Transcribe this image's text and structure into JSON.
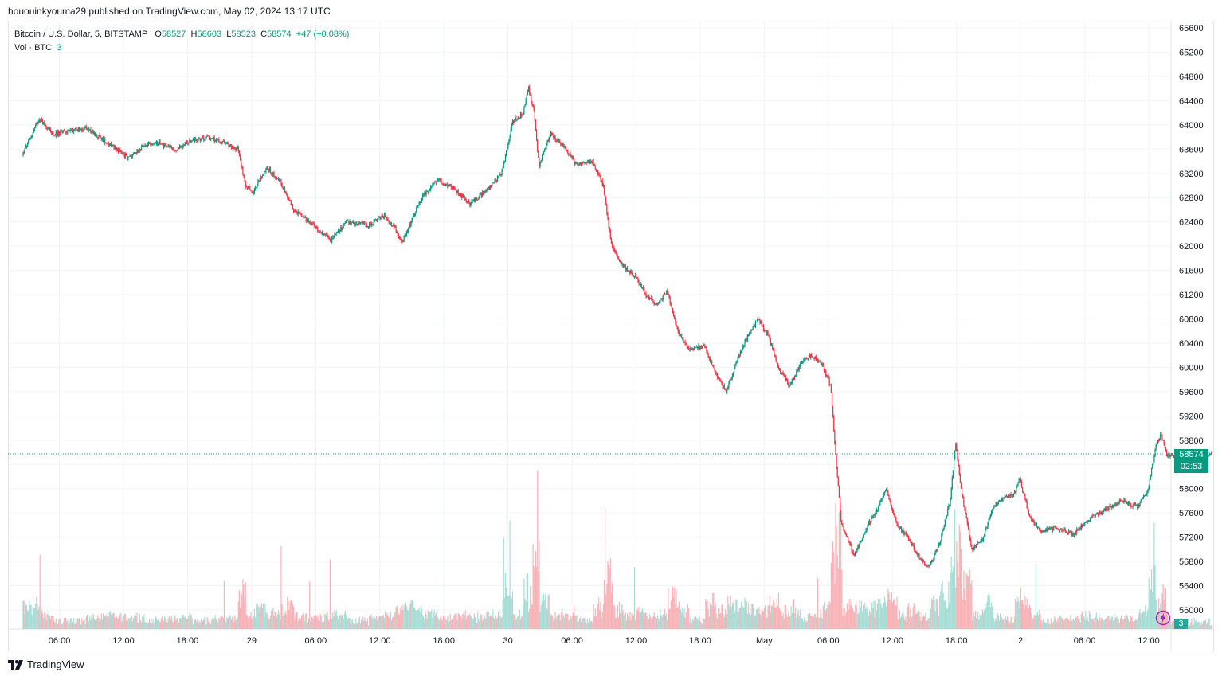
{
  "header": {
    "published_line": "hououinkyouma29 published on TradingView.com, May 02, 2024 13:17 UTC"
  },
  "legend": {
    "symbol": "Bitcoin / U.S. Dollar, 5, BITSTAMP",
    "o_label": "O",
    "o_value": "58527",
    "h_label": "H",
    "h_value": "58603",
    "l_label": "L",
    "l_value": "58523",
    "c_label": "C",
    "c_value": "58574",
    "change": "+47 (+0.08%)",
    "vol_label": "Vol · BTC",
    "vol_value": "3"
  },
  "price_tag": {
    "price": "58574",
    "countdown": "02:53"
  },
  "vol_badge": "3",
  "brand": {
    "name": "TradingView"
  },
  "colors": {
    "up": "#089981",
    "down": "#f23645",
    "up_vol": "#a8ddd6",
    "down_vol": "#f7b3b7",
    "grid": "#f0f3fa"
  },
  "chart_data": {
    "type": "candlestick",
    "title": "Bitcoin / U.S. Dollar, 5, BITSTAMP",
    "ylim": [
      55700,
      65700
    ],
    "y_ticks": [
      56000,
      56400,
      56800,
      57200,
      57600,
      58000,
      58400,
      58800,
      59200,
      59600,
      60000,
      60400,
      60800,
      61200,
      61600,
      62000,
      62400,
      62800,
      63200,
      63600,
      64000,
      64400,
      64800,
      65200,
      65600
    ],
    "x_tick_labels": [
      "06:00",
      "12:00",
      "18:00",
      "29",
      "06:00",
      "12:00",
      "18:00",
      "30",
      "06:00",
      "12:00",
      "18:00",
      "May",
      "06:00",
      "12:00",
      "18:00",
      "2",
      "06:00",
      "12:00"
    ],
    "x_tick_hours": [
      6,
      12,
      18,
      24,
      30,
      36,
      42,
      48,
      54,
      60,
      66,
      72,
      78,
      84,
      90,
      96,
      102,
      108
    ],
    "x_start_hour": 2.6,
    "x_end_hour": 113.9,
    "last_price": 58574,
    "price_path": [
      [
        2.6,
        63500
      ],
      [
        4.2,
        64100
      ],
      [
        5.5,
        63850
      ],
      [
        7,
        63900
      ],
      [
        8.5,
        63950
      ],
      [
        10,
        63780
      ],
      [
        11.5,
        63600
      ],
      [
        12.5,
        63450
      ],
      [
        14,
        63650
      ],
      [
        15.5,
        63700
      ],
      [
        17,
        63580
      ],
      [
        18.5,
        63750
      ],
      [
        20,
        63800
      ],
      [
        21.5,
        63700
      ],
      [
        22.8,
        63600
      ],
      [
        23.5,
        63000
      ],
      [
        24.2,
        62900
      ],
      [
        25.5,
        63300
      ],
      [
        26.8,
        63050
      ],
      [
        28,
        62600
      ],
      [
        29.5,
        62400
      ],
      [
        30.5,
        62250
      ],
      [
        31.5,
        62100
      ],
      [
        33,
        62400
      ],
      [
        35,
        62350
      ],
      [
        36.5,
        62500
      ],
      [
        37.5,
        62300
      ],
      [
        38.2,
        62050
      ],
      [
        39,
        62400
      ],
      [
        40,
        62800
      ],
      [
        41.5,
        63100
      ],
      [
        43,
        62950
      ],
      [
        44.5,
        62700
      ],
      [
        46,
        62900
      ],
      [
        47.5,
        63200
      ],
      [
        48.5,
        64050
      ],
      [
        49.5,
        64200
      ],
      [
        50,
        64600
      ],
      [
        50.5,
        64250
      ],
      [
        51,
        63300
      ],
      [
        52,
        63850
      ],
      [
        53,
        63700
      ],
      [
        54.5,
        63350
      ],
      [
        56,
        63400
      ],
      [
        57,
        63000
      ],
      [
        57.8,
        62000
      ],
      [
        58.8,
        61700
      ],
      [
        60,
        61500
      ],
      [
        61,
        61200
      ],
      [
        62,
        61050
      ],
      [
        63,
        61250
      ],
      [
        64,
        60600
      ],
      [
        65,
        60300
      ],
      [
        66.5,
        60350
      ],
      [
        67.5,
        59900
      ],
      [
        68.5,
        59600
      ],
      [
        69.5,
        60100
      ],
      [
        70.5,
        60500
      ],
      [
        71.5,
        60800
      ],
      [
        72.5,
        60500
      ],
      [
        73.5,
        59950
      ],
      [
        74.5,
        59700
      ],
      [
        75.5,
        60050
      ],
      [
        76.5,
        60200
      ],
      [
        77.5,
        60050
      ],
      [
        78.3,
        59700
      ],
      [
        78.8,
        58500
      ],
      [
        79.3,
        57400
      ],
      [
        80.5,
        56900
      ],
      [
        81.5,
        57300
      ],
      [
        82.5,
        57600
      ],
      [
        83.5,
        58000
      ],
      [
        84.5,
        57400
      ],
      [
        85.5,
        57200
      ],
      [
        86.5,
        56900
      ],
      [
        87.5,
        56700
      ],
      [
        88.5,
        57100
      ],
      [
        89.5,
        57800
      ],
      [
        90,
        58800
      ],
      [
        90.5,
        58000
      ],
      [
        91.5,
        57000
      ],
      [
        92.5,
        57150
      ],
      [
        93.5,
        57700
      ],
      [
        94.5,
        57850
      ],
      [
        95.5,
        57900
      ],
      [
        96,
        58150
      ],
      [
        97,
        57500
      ],
      [
        98,
        57300
      ],
      [
        99.5,
        57350
      ],
      [
        101,
        57250
      ],
      [
        102.5,
        57500
      ],
      [
        104,
        57650
      ],
      [
        105.5,
        57800
      ],
      [
        107,
        57700
      ],
      [
        108,
        57950
      ],
      [
        108.7,
        58650
      ],
      [
        109.2,
        58900
      ],
      [
        109.8,
        58550
      ]
    ]
  }
}
